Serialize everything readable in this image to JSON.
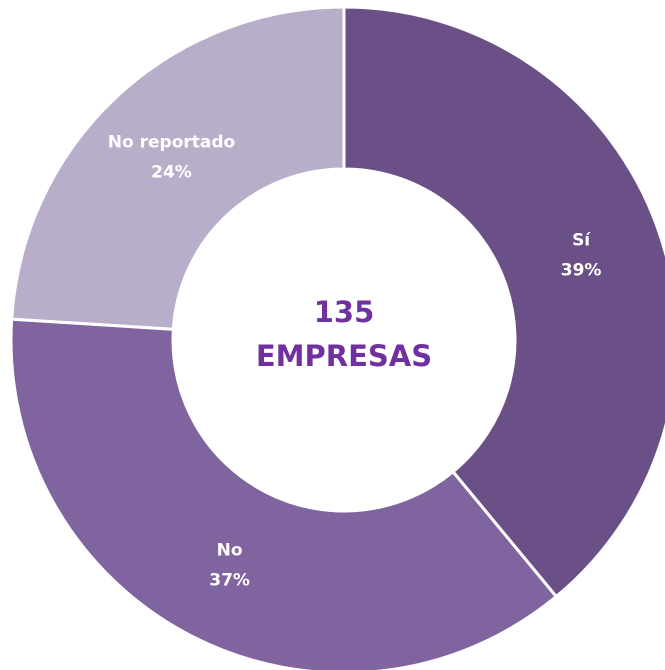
{
  "chart_data": {
    "type": "donut",
    "categories": [
      "Sí",
      "No",
      "No reportado"
    ],
    "values": [
      39,
      37,
      24
    ],
    "value_labels": [
      "39%",
      "37%",
      "24%"
    ],
    "colors": [
      "#6a5087",
      "#7f64a0",
      "#b8aec9"
    ],
    "annotations": [
      "135",
      "EMPRESAS"
    ]
  }
}
